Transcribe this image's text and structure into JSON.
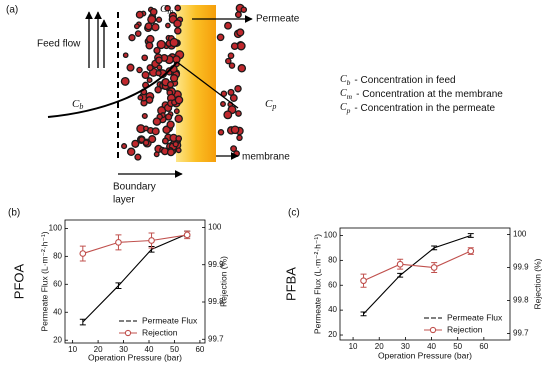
{
  "diagram": {
    "panel_label": "(a)",
    "feed_flow": "Feed flow",
    "permeate": "Permeate",
    "membrane": "membrane",
    "boundary_layer": [
      "Boundary",
      "layer"
    ],
    "cm": {
      "sym": "C",
      "sub": "m"
    },
    "cb": {
      "sym": "C",
      "sub": "b"
    },
    "cp": {
      "sym": "C",
      "sub": "p"
    },
    "legend": [
      {
        "sym": "C",
        "sub": "b",
        "text": "- Concentration in feed"
      },
      {
        "sym": "C",
        "sub": "m",
        "text": "- Concentration at the membrane"
      },
      {
        "sym": "C",
        "sub": "p",
        "text": "- Concentration in the permeate"
      }
    ]
  },
  "chart_data": [
    {
      "type": "line",
      "panel_label": "(b)",
      "title": "PFOA",
      "xlabel": "Operation Pressure (bar)",
      "ylabel": "Permeate Flux (L·m⁻²·h⁻¹)",
      "y2label": "Rejection (%)",
      "x": [
        14,
        28,
        41,
        55
      ],
      "xlim": [
        7,
        62
      ],
      "xticks": [
        10,
        20,
        30,
        40,
        50,
        60
      ],
      "ylim": [
        18,
        106
      ],
      "yticks": [
        20,
        40,
        60,
        80,
        100
      ],
      "y2lim": [
        99.69,
        100.02
      ],
      "y2ticks": [
        99.7,
        99.8,
        99.9,
        100
      ],
      "legend": "lower right",
      "series": [
        {
          "name": "Permeate Flux",
          "color": "#000000",
          "marker": "none",
          "values": [
            33,
            59,
            85,
            96
          ],
          "errors": [
            2,
            2,
            2,
            2
          ]
        },
        {
          "name": "Rejection",
          "color": "#c0504d",
          "marker": "open-circle",
          "axis": "y2",
          "values": [
            99.93,
            99.96,
            99.965,
            99.98
          ],
          "errors": [
            0.02,
            0.02,
            0.02,
            0.01
          ]
        }
      ]
    },
    {
      "type": "line",
      "panel_label": "(c)",
      "title": "PFBA",
      "xlabel": "Operation Pressure (bar)",
      "ylabel": "Permeate Flux (L·m⁻²·h⁻¹)",
      "y2label": "Rejection (%)",
      "x": [
        14,
        28,
        41,
        55
      ],
      "xlim": [
        5,
        70
      ],
      "xticks": [
        10,
        20,
        30,
        40,
        50,
        60
      ],
      "ylim": [
        16,
        106
      ],
      "yticks": [
        20,
        40,
        60,
        80,
        100
      ],
      "y2lim": [
        99.68,
        100.02
      ],
      "y2ticks": [
        99.7,
        99.8,
        99.9,
        100
      ],
      "legend": "lower right",
      "series": [
        {
          "name": "Permeate Flux",
          "color": "#000000",
          "marker": "none",
          "values": [
            37,
            68,
            90,
            100
          ],
          "errors": [
            1.5,
            1.5,
            1.5,
            1.5
          ]
        },
        {
          "name": "Rejection",
          "color": "#c0504d",
          "marker": "open-circle",
          "axis": "y2",
          "values": [
            99.86,
            99.91,
            99.9,
            99.95
          ],
          "errors": [
            0.02,
            0.015,
            0.015,
            0.01
          ]
        }
      ]
    }
  ]
}
